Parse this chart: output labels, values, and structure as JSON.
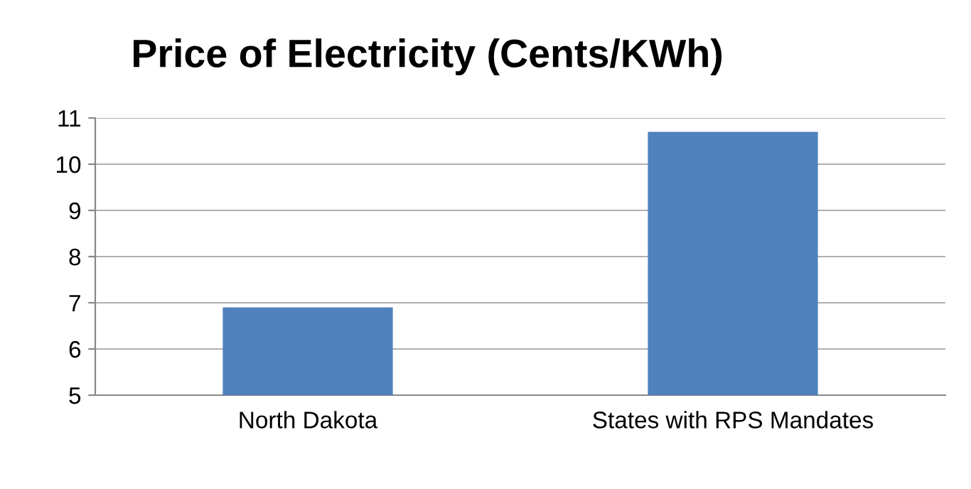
{
  "chart_data": {
    "type": "bar",
    "title": "Price of Electricity (Cents/KWh)",
    "categories": [
      "North Dakota",
      "States with RPS Mandates"
    ],
    "values": [
      6.9,
      10.7
    ],
    "color": "#4f81bd",
    "ylim": [
      5,
      11
    ],
    "yticks": [
      5,
      6,
      7,
      8,
      9,
      10,
      11
    ],
    "grid": "y",
    "legend": false
  }
}
